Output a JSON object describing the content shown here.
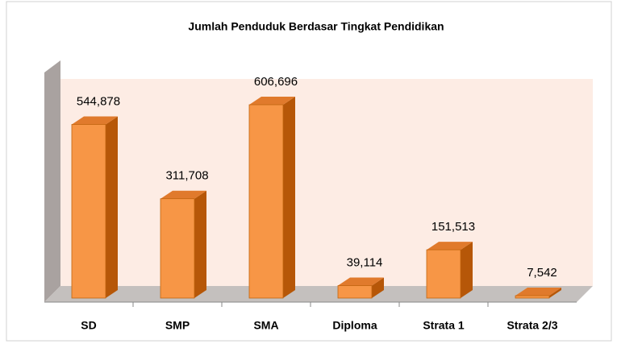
{
  "chart_data": {
    "type": "bar3d",
    "title": "Jumlah Penduduk Berdasar Tingkat Pendidikan",
    "categories": [
      "SD",
      "SMP",
      "SMA",
      "Diploma",
      "Strata 1",
      "Strata 2/3"
    ],
    "values": [
      544878,
      311708,
      606696,
      39114,
      151513,
      7542
    ],
    "value_labels": [
      "544,878",
      "311,708",
      "606,696",
      "39,114",
      "151,513",
      "7,542"
    ],
    "color": "#f79646"
  }
}
